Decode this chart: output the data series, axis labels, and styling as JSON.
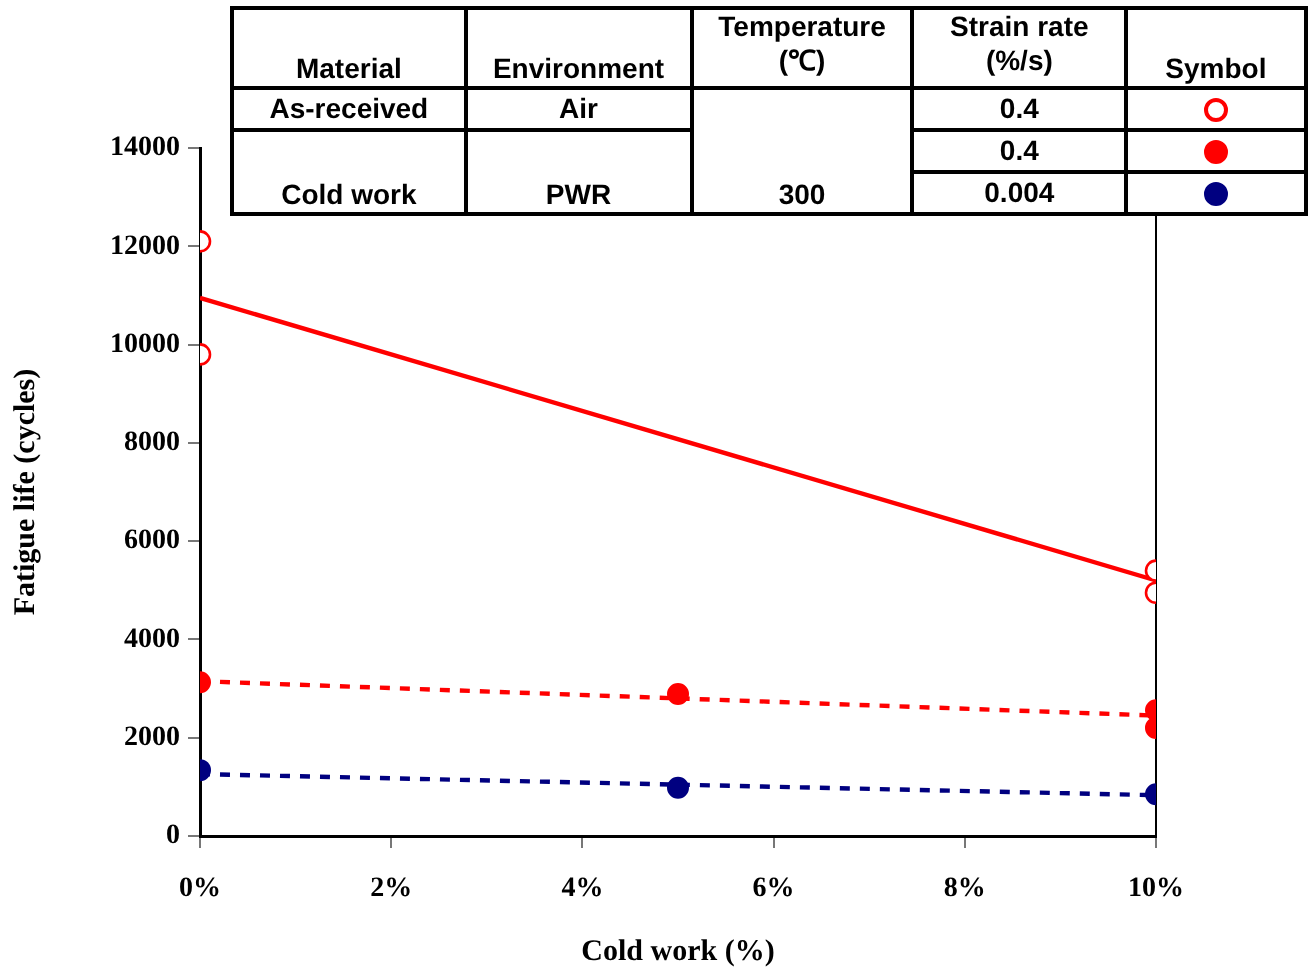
{
  "chart_data": {
    "type": "scatter",
    "xlabel": "Cold work (%)",
    "ylabel": "Fatigue life (cycles)",
    "xlim": [
      0,
      10
    ],
    "xticks": [
      {
        "value": 0,
        "label": "0%"
      },
      {
        "value": 2,
        "label": "2%"
      },
      {
        "value": 4,
        "label": "4%"
      },
      {
        "value": 6,
        "label": "6%"
      },
      {
        "value": 8,
        "label": "8%"
      },
      {
        "value": 10,
        "label": "10%"
      }
    ],
    "ylim": [
      0,
      14000
    ],
    "yticks": [
      0,
      2000,
      4000,
      6000,
      8000,
      10000,
      12000,
      14000
    ],
    "grid": false,
    "legend": false,
    "series": [
      {
        "marker": "circle",
        "color": "#ff0000",
        "x": [
          0,
          0,
          10,
          10
        ],
        "values": [
          12100,
          9800,
          5400,
          4950
        ]
      },
      {
        "marker": "circle",
        "color": "#ff0000",
        "x": [
          0,
          5,
          10,
          10
        ],
        "values": [
          3130,
          2890,
          2560,
          2200
        ]
      },
      {
        "marker": "circle",
        "color": "#000080",
        "x": [
          0,
          5,
          10
        ],
        "values": [
          1340,
          980,
          850
        ]
      },
      {
        "type": "line",
        "marker": "none",
        "line_style": "solid",
        "color": "#ff0000",
        "x": [
          0,
          10
        ],
        "values": [
          10950,
          5200
        ]
      },
      {
        "type": "line",
        "marker": "none",
        "line_style": "dashed",
        "color": "#ff0000",
        "x": [
          0,
          10
        ],
        "values": [
          3150,
          2450
        ]
      },
      {
        "type": "line",
        "marker": "none",
        "line_style": "dashed",
        "color": "#000080",
        "x": [
          0,
          10
        ],
        "values": [
          1260,
          830
        ]
      }
    ],
    "annotations": [
      "Material",
      "Environment",
      "Temperature (℃)",
      "Strain rate (%/s)",
      "Symbol",
      "As-received",
      "Air",
      "0.4",
      "Cold work",
      "PWR",
      "300",
      "0.4",
      "0.004"
    ]
  }
}
